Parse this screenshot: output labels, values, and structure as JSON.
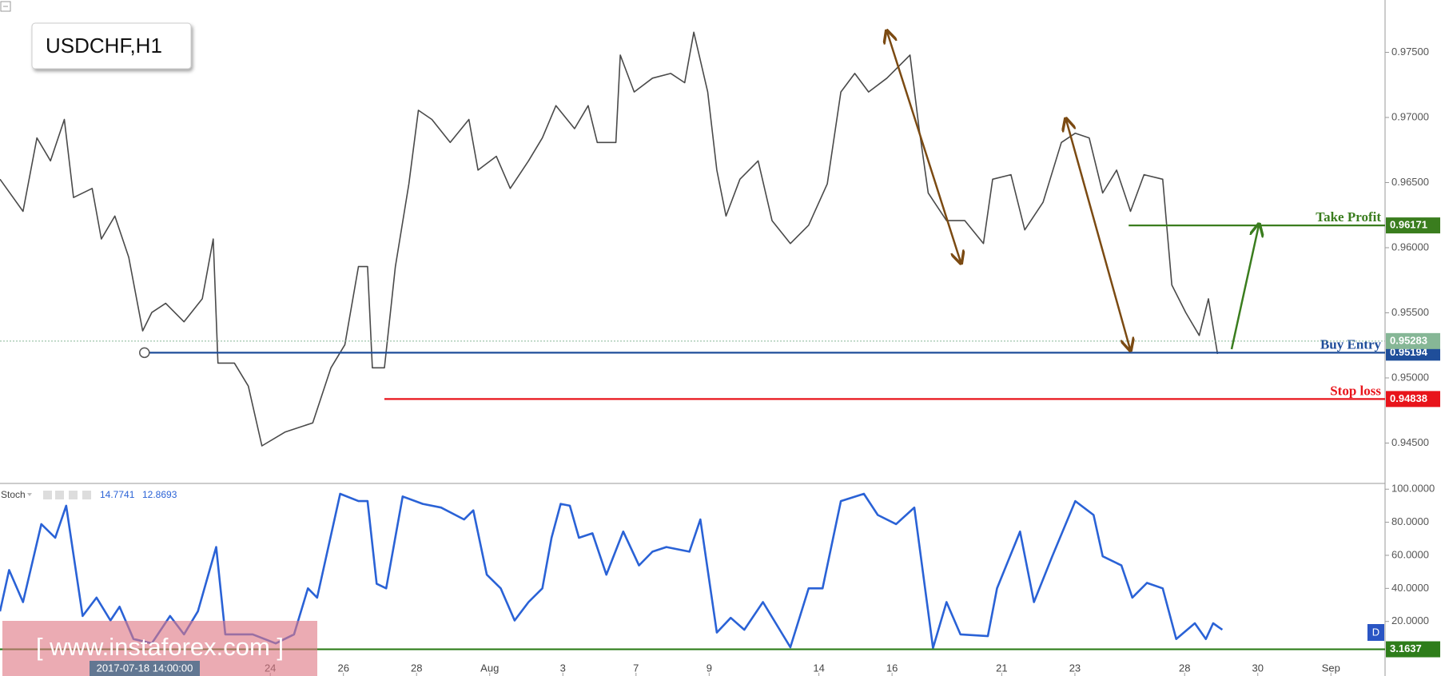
{
  "chart_data": [
    {
      "type": "line",
      "title": "USDCHF,H1",
      "color": "#4a4a4a",
      "xlim": [
        -7.39,
        30.48
      ],
      "ylim": [
        0.94196,
        0.97902
      ],
      "yticks": [
        {
          "value": 0.945,
          "label": "0.94500"
        },
        {
          "value": 0.95,
          "label": "0.95000"
        },
        {
          "value": 0.955,
          "label": "0.95500"
        },
        {
          "value": 0.96,
          "label": "0.96000"
        },
        {
          "value": 0.965,
          "label": "0.96500"
        },
        {
          "value": 0.97,
          "label": "0.97000"
        },
        {
          "value": 0.975,
          "label": "0.97500"
        }
      ],
      "x": [
        -7.39,
        -6.76,
        -6.38,
        -6.01,
        -5.63,
        -5.38,
        -4.87,
        -4.62,
        -4.25,
        -3.87,
        -3.49,
        -3.24,
        -2.86,
        -2.36,
        -1.86,
        -1.56,
        -1.43,
        -0.98,
        -0.6,
        -0.23,
        0.4,
        1.16,
        1.66,
        2.04,
        2.41,
        2.66,
        2.79,
        3.12,
        3.42,
        3.79,
        4.05,
        4.42,
        4.92,
        5.43,
        5.68,
        6.18,
        6.56,
        7.06,
        7.44,
        7.81,
        8.32,
        8.69,
        8.94,
        9.45,
        9.57,
        9.95,
        10.45,
        10.95,
        11.33,
        11.58,
        11.96,
        12.21,
        12.46,
        12.84,
        13.34,
        13.72,
        14.22,
        14.72,
        15.23,
        15.6,
        15.98,
        16.36,
        16.86,
        17.49,
        17.74,
        17.99,
        18.49,
        18.99,
        19.5,
        19.75,
        20.25,
        20.63,
        21.13,
        21.63,
        22.01,
        22.39,
        22.76,
        23.14,
        23.52,
        23.89,
        24.4,
        24.65,
        25.03,
        25.4,
        25.65,
        25.9
      ],
      "values": [
        0.96526,
        0.96279,
        0.96843,
        0.96667,
        0.96985,
        0.96385,
        0.96455,
        0.96067,
        0.96243,
        0.95926,
        0.95361,
        0.95502,
        0.95573,
        0.95431,
        0.95608,
        0.96067,
        0.95114,
        0.95114,
        0.94937,
        0.94478,
        0.94584,
        0.94655,
        0.95078,
        0.95255,
        0.95855,
        0.95855,
        0.95078,
        0.95078,
        0.95855,
        0.9649,
        0.97055,
        0.96985,
        0.96808,
        0.96985,
        0.96596,
        0.96702,
        0.96455,
        0.96667,
        0.96843,
        0.97091,
        0.96914,
        0.97091,
        0.96808,
        0.96808,
        0.97479,
        0.97196,
        0.97302,
        0.97338,
        0.97267,
        0.97655,
        0.97196,
        0.96596,
        0.96243,
        0.96526,
        0.96667,
        0.96208,
        0.96032,
        0.96173,
        0.9649,
        0.97196,
        0.97338,
        0.97196,
        0.97302,
        0.97479,
        0.96914,
        0.9642,
        0.96208,
        0.96208,
        0.96032,
        0.96526,
        0.96561,
        0.96137,
        0.96349,
        0.96808,
        0.96879,
        0.96843,
        0.9642,
        0.96596,
        0.96279,
        0.96561,
        0.96526,
        0.95714,
        0.95502,
        0.95326,
        0.95608,
        0.95184
      ],
      "levels": [
        {
          "label": "Take Profit",
          "value": 0.96171,
          "color": "#3a7d1e",
          "start_x": 23.47
        },
        {
          "label": "Buy Entry",
          "value": 0.95194,
          "color": "#1f4e9a",
          "start_x": -3.44
        },
        {
          "label": "Stop loss",
          "value": 0.94838,
          "color": "#e8141b",
          "start_x": 3.12
        },
        {
          "value": 0.95283,
          "color": "#86b796",
          "style": "dotted"
        }
      ]
    },
    {
      "type": "line",
      "name": "Stoch",
      "color": "#2a62d6",
      "readings": [
        14.7741,
        12.8693
      ],
      "xlim": [
        -7.39,
        30.48
      ],
      "ylim": [
        -13,
        103
      ],
      "yticks": [
        {
          "value": 20,
          "label": "20.0000"
        },
        {
          "value": 40,
          "label": "40.0000"
        },
        {
          "value": 60,
          "label": "60.0000"
        },
        {
          "value": 80,
          "label": "80.0000"
        },
        {
          "value": 100,
          "label": "100.0000"
        }
      ],
      "xticks": [
        {
          "value": 0,
          "label": "24"
        },
        {
          "value": 2,
          "label": "26"
        },
        {
          "value": 4,
          "label": "28"
        },
        {
          "value": 6,
          "label": "Aug"
        },
        {
          "value": 8,
          "label": "3"
        },
        {
          "value": 10,
          "label": "7"
        },
        {
          "value": 12,
          "label": "9"
        },
        {
          "value": 15,
          "label": "14"
        },
        {
          "value": 17,
          "label": "16"
        },
        {
          "value": 20,
          "label": "21"
        },
        {
          "value": 22,
          "label": "23"
        },
        {
          "value": 25,
          "label": "28"
        },
        {
          "value": 27,
          "label": "30"
        },
        {
          "value": 29,
          "label": "Sep"
        }
      ],
      "x": [
        -7.39,
        -7.14,
        -6.76,
        -6.26,
        -5.88,
        -5.58,
        -5.13,
        -4.75,
        -4.37,
        -4.12,
        -3.74,
        -3.24,
        -2.74,
        -2.36,
        -1.98,
        -1.48,
        -1.23,
        -0.48,
        0.15,
        0.65,
        1.03,
        1.28,
        1.91,
        2.41,
        2.66,
        2.91,
        3.17,
        3.62,
        4.17,
        4.67,
        5.3,
        5.55,
        5.92,
        6.3,
        6.68,
        7.06,
        7.44,
        7.69,
        7.94,
        8.19,
        8.44,
        8.81,
        9.19,
        9.65,
        10.08,
        10.45,
        10.83,
        11.46,
        11.76,
        12.21,
        12.59,
        12.96,
        13.47,
        14.22,
        14.72,
        15.1,
        15.6,
        16.23,
        16.61,
        17.11,
        17.61,
        18.12,
        18.49,
        18.87,
        19.62,
        19.87,
        20.5,
        20.88,
        21.38,
        22.01,
        22.51,
        22.76,
        23.27,
        23.57,
        23.97,
        24.4,
        24.77,
        25.28,
        25.58,
        25.78,
        26.03
      ],
      "values": [
        26.1,
        51.1,
        31.7,
        78.9,
        70.6,
        90,
        23.3,
        34.4,
        20.6,
        28.9,
        9.4,
        6.7,
        23.3,
        12.2,
        26.1,
        65,
        12.2,
        12.2,
        6.7,
        12.2,
        40,
        34.4,
        97.2,
        92.8,
        92.8,
        42.8,
        40,
        95.6,
        91.1,
        88.9,
        81.7,
        87.2,
        48.3,
        40,
        20.6,
        31.7,
        40,
        70.6,
        91.1,
        90,
        70.6,
        73.3,
        48.3,
        74.4,
        53.9,
        62.2,
        65,
        62.2,
        81.7,
        13.3,
        22.2,
        15,
        31.7,
        4.4,
        40,
        40,
        92.8,
        97.2,
        84.4,
        78.9,
        88.9,
        3.9,
        31.7,
        12.2,
        11.1,
        40,
        74.4,
        31.7,
        59.4,
        92.8,
        84.4,
        59.4,
        53.9,
        34.4,
        43.3,
        40,
        9.4,
        18.9,
        9.4,
        18.9,
        15
      ],
      "levels": [
        {
          "value": 3.1637,
          "color": "#2e7d1a"
        }
      ]
    }
  ],
  "overlay": {
    "watermark": "[ www.instaforex.com ]",
    "crosshair_label": "2017-07-18 14:00:00",
    "badge": "D"
  }
}
